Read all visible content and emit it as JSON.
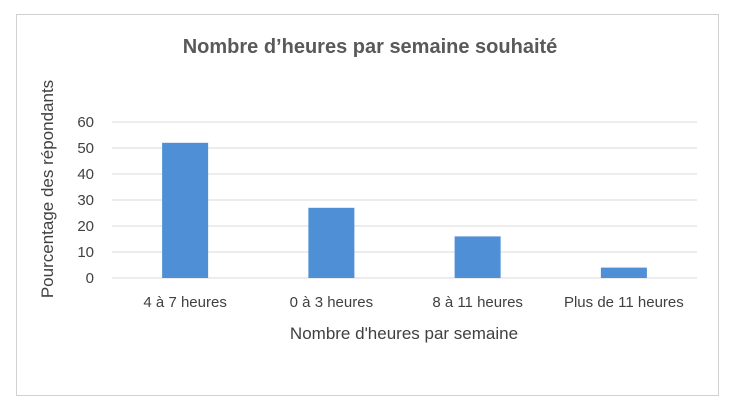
{
  "chart_data": {
    "type": "bar",
    "title": "Nombre d’heures par semaine souhaité",
    "xlabel": "Nombre d'heures par semaine",
    "ylabel": "Pourcentage des répondants",
    "categories": [
      "4 à 7 heures",
      "0 à 3 heures",
      "8 à 11 heures",
      "Plus de 11 heures"
    ],
    "values": [
      52,
      27,
      16,
      4
    ],
    "ylim": [
      0,
      60
    ],
    "yticks": [
      0,
      10,
      20,
      30,
      40,
      50,
      60
    ],
    "grid": true,
    "legend": "none",
    "bar_color": "#4F8FD6",
    "grid_color": "#D9D9D9"
  }
}
